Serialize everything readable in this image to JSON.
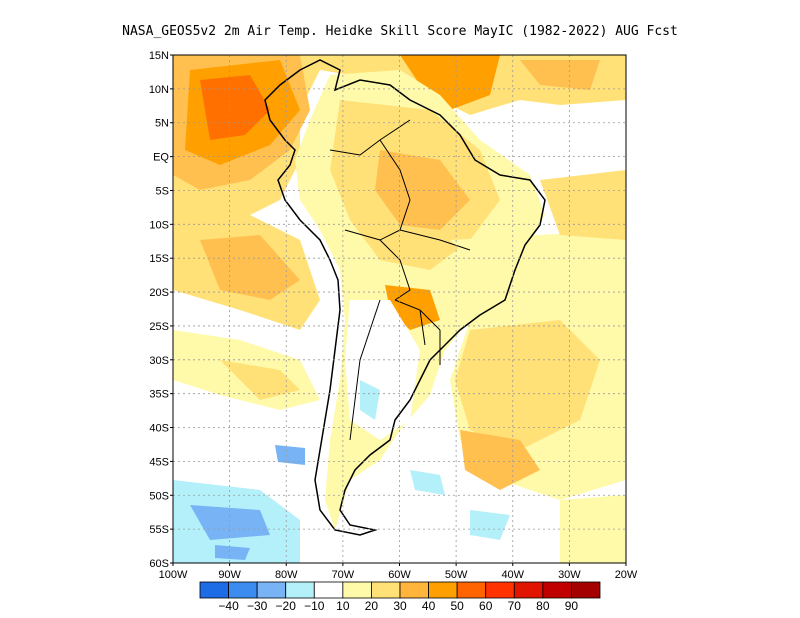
{
  "title": "NASA_GEOS5v2  2m Air Temp. Heidke Skill Score MayIC (1982-2022) AUG Fcst",
  "map": {
    "lat_labels": [
      "15N",
      "10N",
      "5N",
      "EQ",
      "5S",
      "10S",
      "15S",
      "20S",
      "25S",
      "30S",
      "35S",
      "40S",
      "45S",
      "50S",
      "55S",
      "60S"
    ],
    "lon_labels": [
      "100W",
      "90W",
      "80W",
      "70W",
      "60W",
      "50W",
      "40W",
      "30W",
      "20W"
    ],
    "grid": true
  },
  "colorbar": {
    "labels": [
      "-40",
      "-30",
      "-20",
      "-10",
      "10",
      "20",
      "30",
      "40",
      "50",
      "60",
      "70",
      "80",
      "90"
    ],
    "colors": [
      "#1e6be6",
      "#3c8cf0",
      "#78b4f5",
      "#b4f0fa",
      "#ffffff",
      "#fffaaa",
      "#ffe178",
      "#ffb43c",
      "#ffa000",
      "#ff6400",
      "#ff3200",
      "#e11400",
      "#c00000",
      "#a50000"
    ]
  },
  "field_colors": {
    "white": "#ffffff",
    "c10": "#fffaaa",
    "c20": "#ffe178",
    "c30": "#ffc050",
    "c40": "#ffa000",
    "c50": "#ff7000",
    "n10": "#b4f0fa",
    "n20": "#78b4f5"
  }
}
